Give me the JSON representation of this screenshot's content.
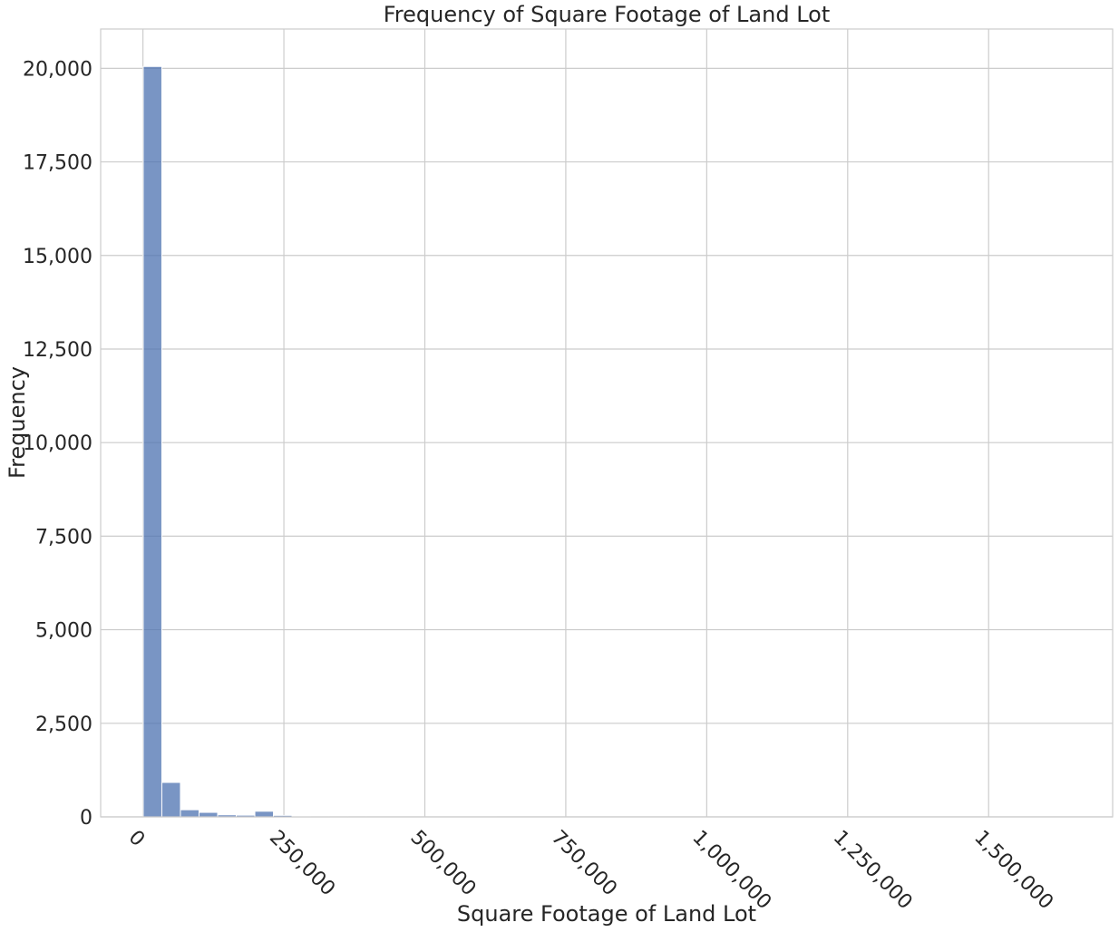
{
  "chart_data": {
    "type": "bar",
    "subtype": "histogram",
    "title": "Frequency of Square Footage of Land Lot",
    "xlabel": "Square Footage of Land Lot",
    "ylabel": "Frequency",
    "xlim": [
      -75000,
      1720000
    ],
    "ylim": [
      0,
      21050
    ],
    "grid": true,
    "bar_color": "#4c72b0",
    "bin_width": 33000,
    "bins": [
      {
        "start": 500,
        "count": 20050
      },
      {
        "start": 33500,
        "count": 920
      },
      {
        "start": 66500,
        "count": 190
      },
      {
        "start": 99500,
        "count": 120
      },
      {
        "start": 132500,
        "count": 55
      },
      {
        "start": 165500,
        "count": 45
      },
      {
        "start": 198500,
        "count": 150
      },
      {
        "start": 231500,
        "count": 40
      },
      {
        "start": 264500,
        "count": 15
      },
      {
        "start": 297500,
        "count": 8
      },
      {
        "start": 330500,
        "count": 5
      },
      {
        "start": 363500,
        "count": 4
      },
      {
        "start": 396500,
        "count": 3
      },
      {
        "start": 429500,
        "count": 2
      },
      {
        "start": 462500,
        "count": 2
      },
      {
        "start": 495500,
        "count": 1
      },
      {
        "start": 528500,
        "count": 1
      },
      {
        "start": 561500,
        "count": 1
      },
      {
        "start": 594500,
        "count": 1
      }
    ],
    "x_ticks": [
      {
        "value": 0,
        "label": "0"
      },
      {
        "value": 250000,
        "label": "250,000"
      },
      {
        "value": 500000,
        "label": "500,000"
      },
      {
        "value": 750000,
        "label": "750,000"
      },
      {
        "value": 1000000,
        "label": "1,000,000"
      },
      {
        "value": 1250000,
        "label": "1,250,000"
      },
      {
        "value": 1500000,
        "label": "1,500,000"
      }
    ],
    "y_ticks": [
      {
        "value": 0,
        "label": "0"
      },
      {
        "value": 2500,
        "label": "2,500"
      },
      {
        "value": 5000,
        "label": "5,000"
      },
      {
        "value": 7500,
        "label": "7,500"
      },
      {
        "value": 10000,
        "label": "10,000"
      },
      {
        "value": 12500,
        "label": "12,500"
      },
      {
        "value": 15000,
        "label": "15,000"
      },
      {
        "value": 17500,
        "label": "17,500"
      },
      {
        "value": 20000,
        "label": "20,000"
      }
    ]
  }
}
